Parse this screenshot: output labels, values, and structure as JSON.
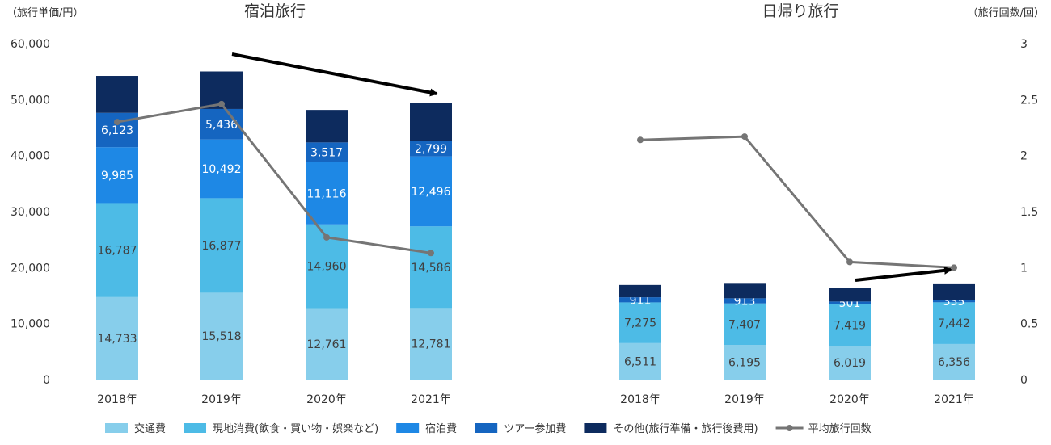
{
  "chart_data": {
    "type": "bar",
    "stacked": true,
    "categories": [
      "2018年",
      "2019年",
      "2020年",
      "2021年"
    ],
    "left_axis": {
      "unit_label": "（旅行単価/円）",
      "ylim": [
        0,
        60000
      ],
      "ticks": [
        0,
        10000,
        20000,
        30000,
        40000,
        50000,
        60000
      ],
      "tick_labels": [
        "0",
        "10,000",
        "20,000",
        "30,000",
        "40,000",
        "50,000",
        "60,000"
      ]
    },
    "right_axis": {
      "unit_label": "（旅行回数/回）",
      "ylim": [
        0,
        3
      ],
      "ticks": [
        0,
        0.5,
        1,
        1.5,
        2,
        2.5,
        3
      ],
      "tick_labels": [
        "0",
        "0.5",
        "1",
        "1.5",
        "2",
        "2.5",
        "3"
      ]
    },
    "panels": [
      {
        "title": "宿泊旅行",
        "axis": "left",
        "series": [
          {
            "name": "交通費",
            "values": [
              14733,
              15518,
              12761,
              12781
            ],
            "labels": [
              "14,733",
              "15,518",
              "12,761",
              "12,781"
            ]
          },
          {
            "name": "現地消費(飲食・買い物・娯楽など)",
            "values": [
              16787,
              16877,
              14960,
              14586
            ],
            "labels": [
              "16,787",
              "16,877",
              "14,960",
              "14,586"
            ]
          },
          {
            "name": "宿泊費",
            "values": [
              9985,
              10492,
              11116,
              12496
            ],
            "labels": [
              "9,985",
              "10,492",
              "11,116",
              "12,496"
            ]
          },
          {
            "name": "ツアー参加費",
            "values": [
              6123,
              5436,
              3517,
              2799
            ],
            "labels": [
              "6,123",
              "5,436",
              "3,517",
              "2,799"
            ]
          },
          {
            "name": "その他(旅行準備・旅行後費用)",
            "values": [
              6600,
              6700,
              5800,
              6700
            ],
            "labels": []
          }
        ],
        "line": {
          "name": "平均旅行回数",
          "values": [
            2.3,
            2.46,
            1.27,
            1.13
          ]
        }
      },
      {
        "title": "日帰り旅行",
        "axis": "right",
        "series": [
          {
            "name": "交通費",
            "values": [
              6511,
              6195,
              6019,
              6356
            ],
            "labels": [
              "6,511",
              "6,195",
              "6,019",
              "6,356"
            ]
          },
          {
            "name": "現地消費(飲食・買い物・娯楽など)",
            "values": [
              7275,
              7407,
              7419,
              7442
            ],
            "labels": [
              "7,275",
              "7,407",
              "7,419",
              "7,442"
            ]
          },
          {
            "name": "宿泊費",
            "values": [
              0,
              0,
              0,
              0
            ],
            "labels": []
          },
          {
            "name": "ツアー参加費",
            "values": [
              911,
              913,
              501,
              335
            ],
            "labels": [
              "911",
              "913",
              "501",
              "335"
            ]
          },
          {
            "name": "その他(旅行準備・旅行後費用)",
            "values": [
              2200,
              2600,
              2500,
              2900
            ],
            "labels": []
          }
        ],
        "line": {
          "name": "平均旅行回数",
          "values": [
            2.14,
            2.17,
            1.05,
            1.0
          ]
        }
      }
    ],
    "legend": {
      "position": "bottom",
      "items": [
        {
          "name": "交通費",
          "kind": "box",
          "color": "#87CEEB"
        },
        {
          "name": "現地消費(飲食・買い物・娯楽など)",
          "kind": "box",
          "color": "#4DBBE6"
        },
        {
          "name": "宿泊費",
          "kind": "box",
          "color": "#1E88E5"
        },
        {
          "name": "ツアー参加費",
          "kind": "box",
          "color": "#1565C0"
        },
        {
          "name": "その他(旅行準備・旅行後費用)",
          "kind": "box",
          "color": "#0D2B5E"
        },
        {
          "name": "平均旅行回数",
          "kind": "line",
          "color": "#757575"
        }
      ]
    },
    "colors": {
      "series": [
        "#87CEEB",
        "#4DBBE6",
        "#1E88E5",
        "#1565C0",
        "#0D2B5E"
      ],
      "line": "#757575",
      "label_dark": "#404040",
      "label_light": "#ffffff",
      "arrow": "#000000"
    },
    "annotations": [
      {
        "kind": "arrow",
        "panel": 0,
        "from": "above 2019年 bar",
        "to": "top of 2021年 bar",
        "meaning": "decrease"
      },
      {
        "kind": "arrow",
        "panel": 1,
        "from": "2020年 bar",
        "to": "2021年 line point",
        "meaning": "increase"
      }
    ]
  }
}
